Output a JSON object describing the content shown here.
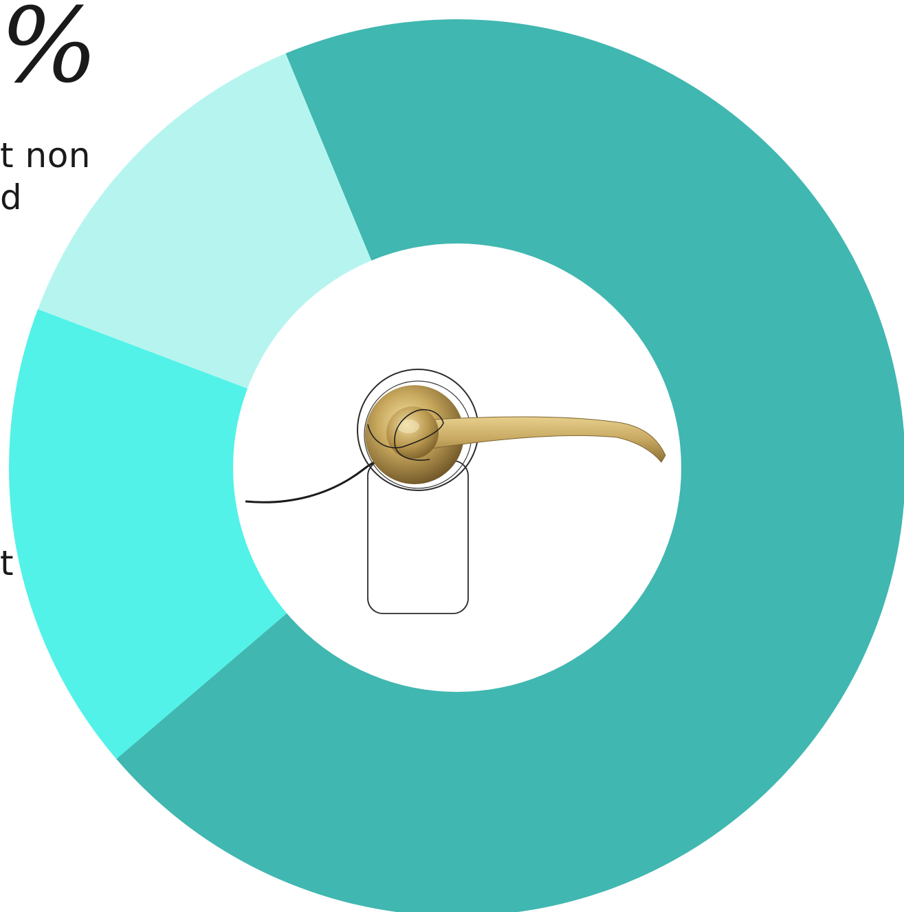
{
  "chart_data": {
    "type": "donut",
    "slices": [
      {
        "value": 70,
        "color": "#40b7b0"
      },
      {
        "value": 17,
        "color": "#52f2e8"
      },
      {
        "value": 13,
        "color": "#b6f5ef"
      }
    ],
    "start_angle_deg": -22.5,
    "direction": "clockwise",
    "annotations": {
      "percent_glyph": "%",
      "left_label_line1": "t non",
      "left_label_line2": "d",
      "left_label_line3": "t"
    },
    "center_image": "door-handle-illustration"
  }
}
